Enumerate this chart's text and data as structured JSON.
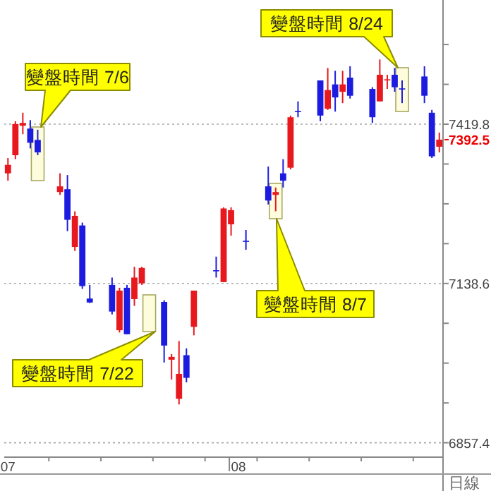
{
  "chart_data": {
    "type": "candlestick",
    "xlabel": "日線",
    "categories": [
      "07",
      null,
      null,
      null,
      null,
      null,
      null,
      null,
      null,
      null,
      null,
      null,
      null,
      null,
      null,
      null,
      null,
      null,
      null,
      null,
      null,
      null,
      null,
      null,
      null,
      null,
      null,
      null,
      null,
      null,
      null,
      "08",
      null,
      null,
      null,
      null,
      null,
      null,
      null,
      null,
      null,
      null,
      null,
      null,
      null,
      null,
      null,
      null,
      null,
      null,
      null,
      null,
      null,
      null,
      null,
      null,
      null,
      null,
      null
    ],
    "ohlc": [
      [
        7333,
        7360,
        7320,
        7348
      ],
      [
        7365,
        7425,
        7358,
        7420
      ],
      [
        7417,
        7440,
        7402,
        7422
      ],
      [
        7412,
        7427,
        7377,
        7387
      ],
      [
        7392,
        7410,
        7365,
        7370
      ],
      null,
      null,
      [
        7300,
        7333,
        7295,
        7310
      ],
      [
        7305,
        7330,
        7231,
        7251
      ],
      [
        7203,
        7266,
        7196,
        7258
      ],
      [
        7241,
        7246,
        7129,
        7134
      ],
      [
        7112,
        7136,
        7104,
        7105
      ],
      null,
      null,
      [
        7136,
        7149,
        7084,
        7089
      ],
      [
        7056,
        7131,
        7052,
        7126
      ],
      [
        7131,
        7136,
        7049,
        7049
      ],
      [
        7111,
        7168,
        7099,
        7149
      ],
      [
        7139,
        7168,
        7136,
        7166
      ],
      null,
      null,
      [
        7106,
        7109,
        6999,
        7029
      ],
      [
        7004,
        7014,
        6969,
        7009
      ],
      [
        6935,
        7037,
        6925,
        6979
      ],
      [
        7012,
        7024,
        6964,
        6972
      ],
      [
        7062,
        7126,
        7047,
        7126
      ],
      null,
      null,
      [
        7162,
        7186,
        7149,
        7160
      ],
      [
        7141,
        7273,
        7141,
        7271
      ],
      [
        7243,
        7273,
        7223,
        7268
      ],
      null,
      [
        7214,
        7233,
        7198,
        7212
      ],
      null,
      null,
      [
        7310,
        7345,
        7278,
        7285
      ],
      [
        7295,
        7308,
        7266,
        7300
      ],
      [
        7333,
        7358,
        7308,
        7320
      ],
      [
        7343,
        7435,
        7340,
        7432
      ],
      [
        7443,
        7460,
        7432,
        7441
      ],
      null,
      null,
      [
        7497,
        7497,
        7425,
        7435
      ],
      [
        7447,
        7519,
        7445,
        7480
      ],
      [
        7490,
        7514,
        7442,
        7467
      ],
      [
        7477,
        7514,
        7457,
        7490
      ],
      [
        7502,
        7522,
        7465,
        7470
      ],
      null,
      null,
      [
        7482,
        7485,
        7422,
        7432
      ],
      [
        7460,
        7534,
        7460,
        7507
      ],
      [
        7497,
        7507,
        7482,
        7499
      ],
      [
        7507,
        7519,
        7477,
        7485
      ],
      [
        7483,
        7497,
        7457,
        7481
      ],
      null,
      null,
      [
        7504,
        7522,
        7457,
        7470
      ],
      [
        7440,
        7445,
        7360,
        7363
      ],
      [
        7380,
        7405,
        7370,
        7392.5
      ]
    ],
    "colors": [
      "#e8191e",
      "#e8191e",
      "#e8191e",
      "#1c1ce0",
      "#1c1ce0",
      null,
      null,
      "#e8191e",
      "#1c1ce0",
      "#e8191e",
      "#1c1ce0",
      "#1c1ce0",
      null,
      null,
      "#1c1ce0",
      "#e8191e",
      "#1c1ce0",
      "#e8191e",
      "#e8191e",
      null,
      null,
      "#1c1ce0",
      "#e8191e",
      "#e8191e",
      "#1c1ce0",
      "#e8191e",
      null,
      null,
      "#1c1ce0",
      "#e8191e",
      "#e8191e",
      null,
      "#1c1ce0",
      null,
      null,
      "#1c1ce0",
      "#e8191e",
      "#1c1ce0",
      "#e8191e",
      "#1c1ce0",
      null,
      null,
      "#1c1ce0",
      "#e8191e",
      "#1c1ce0",
      "#e8191e",
      "#1c1ce0",
      null,
      null,
      "#1c1ce0",
      "#e8191e",
      "#e8191e",
      "#1c1ce0",
      "#1c1ce0",
      null,
      null,
      "#1c1ce0",
      "#1c1ce0",
      "#e8191e"
    ],
    "ylim": [
      6832,
      7639
    ],
    "yticks": [
      6857.4,
      {
        "value": 6927.7,
        "label": null
      },
      {
        "value": 6998.0,
        "label": null
      },
      {
        "value": 7068.3,
        "label": null
      },
      7138.6,
      {
        "value": 7208.9,
        "label": null
      },
      {
        "value": 7279.2,
        "label": null
      },
      {
        "value": 7349.5,
        "label": null
      },
      7419.8,
      {
        "value": 7490.1,
        "label": null
      },
      {
        "value": 7560.4,
        "label": null
      }
    ],
    "grid": "y",
    "annotations": [
      "變盤時間 8/24",
      "變盤時間 7/6",
      "變盤時間 8/7",
      "變盤時間 7/22",
      "7392.5"
    ]
  }
}
